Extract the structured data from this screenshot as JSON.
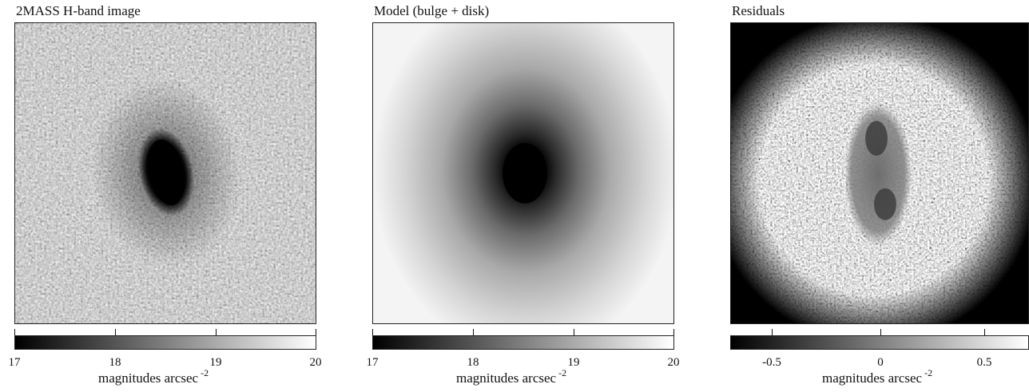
{
  "panels": [
    {
      "title": "2MASS H-band image",
      "colorbar": {
        "unit": "magnitudes arcsec",
        "exponent": "-2",
        "ticks": [
          "17",
          "18",
          "19",
          "20"
        ]
      }
    },
    {
      "title": "Model (bulge + disk)",
      "colorbar": {
        "unit": "magnitudes arcsec",
        "exponent": "-2",
        "ticks": [
          "17",
          "18",
          "19",
          "20"
        ]
      }
    },
    {
      "title": "Residuals",
      "colorbar": {
        "unit": "magnitudes arcsec",
        "exponent": "-2",
        "ticks": [
          "-0.5",
          "0",
          "0.5"
        ]
      }
    }
  ],
  "colors": {
    "colormap_dark": "#000000",
    "colormap_light": "#ffffff"
  }
}
